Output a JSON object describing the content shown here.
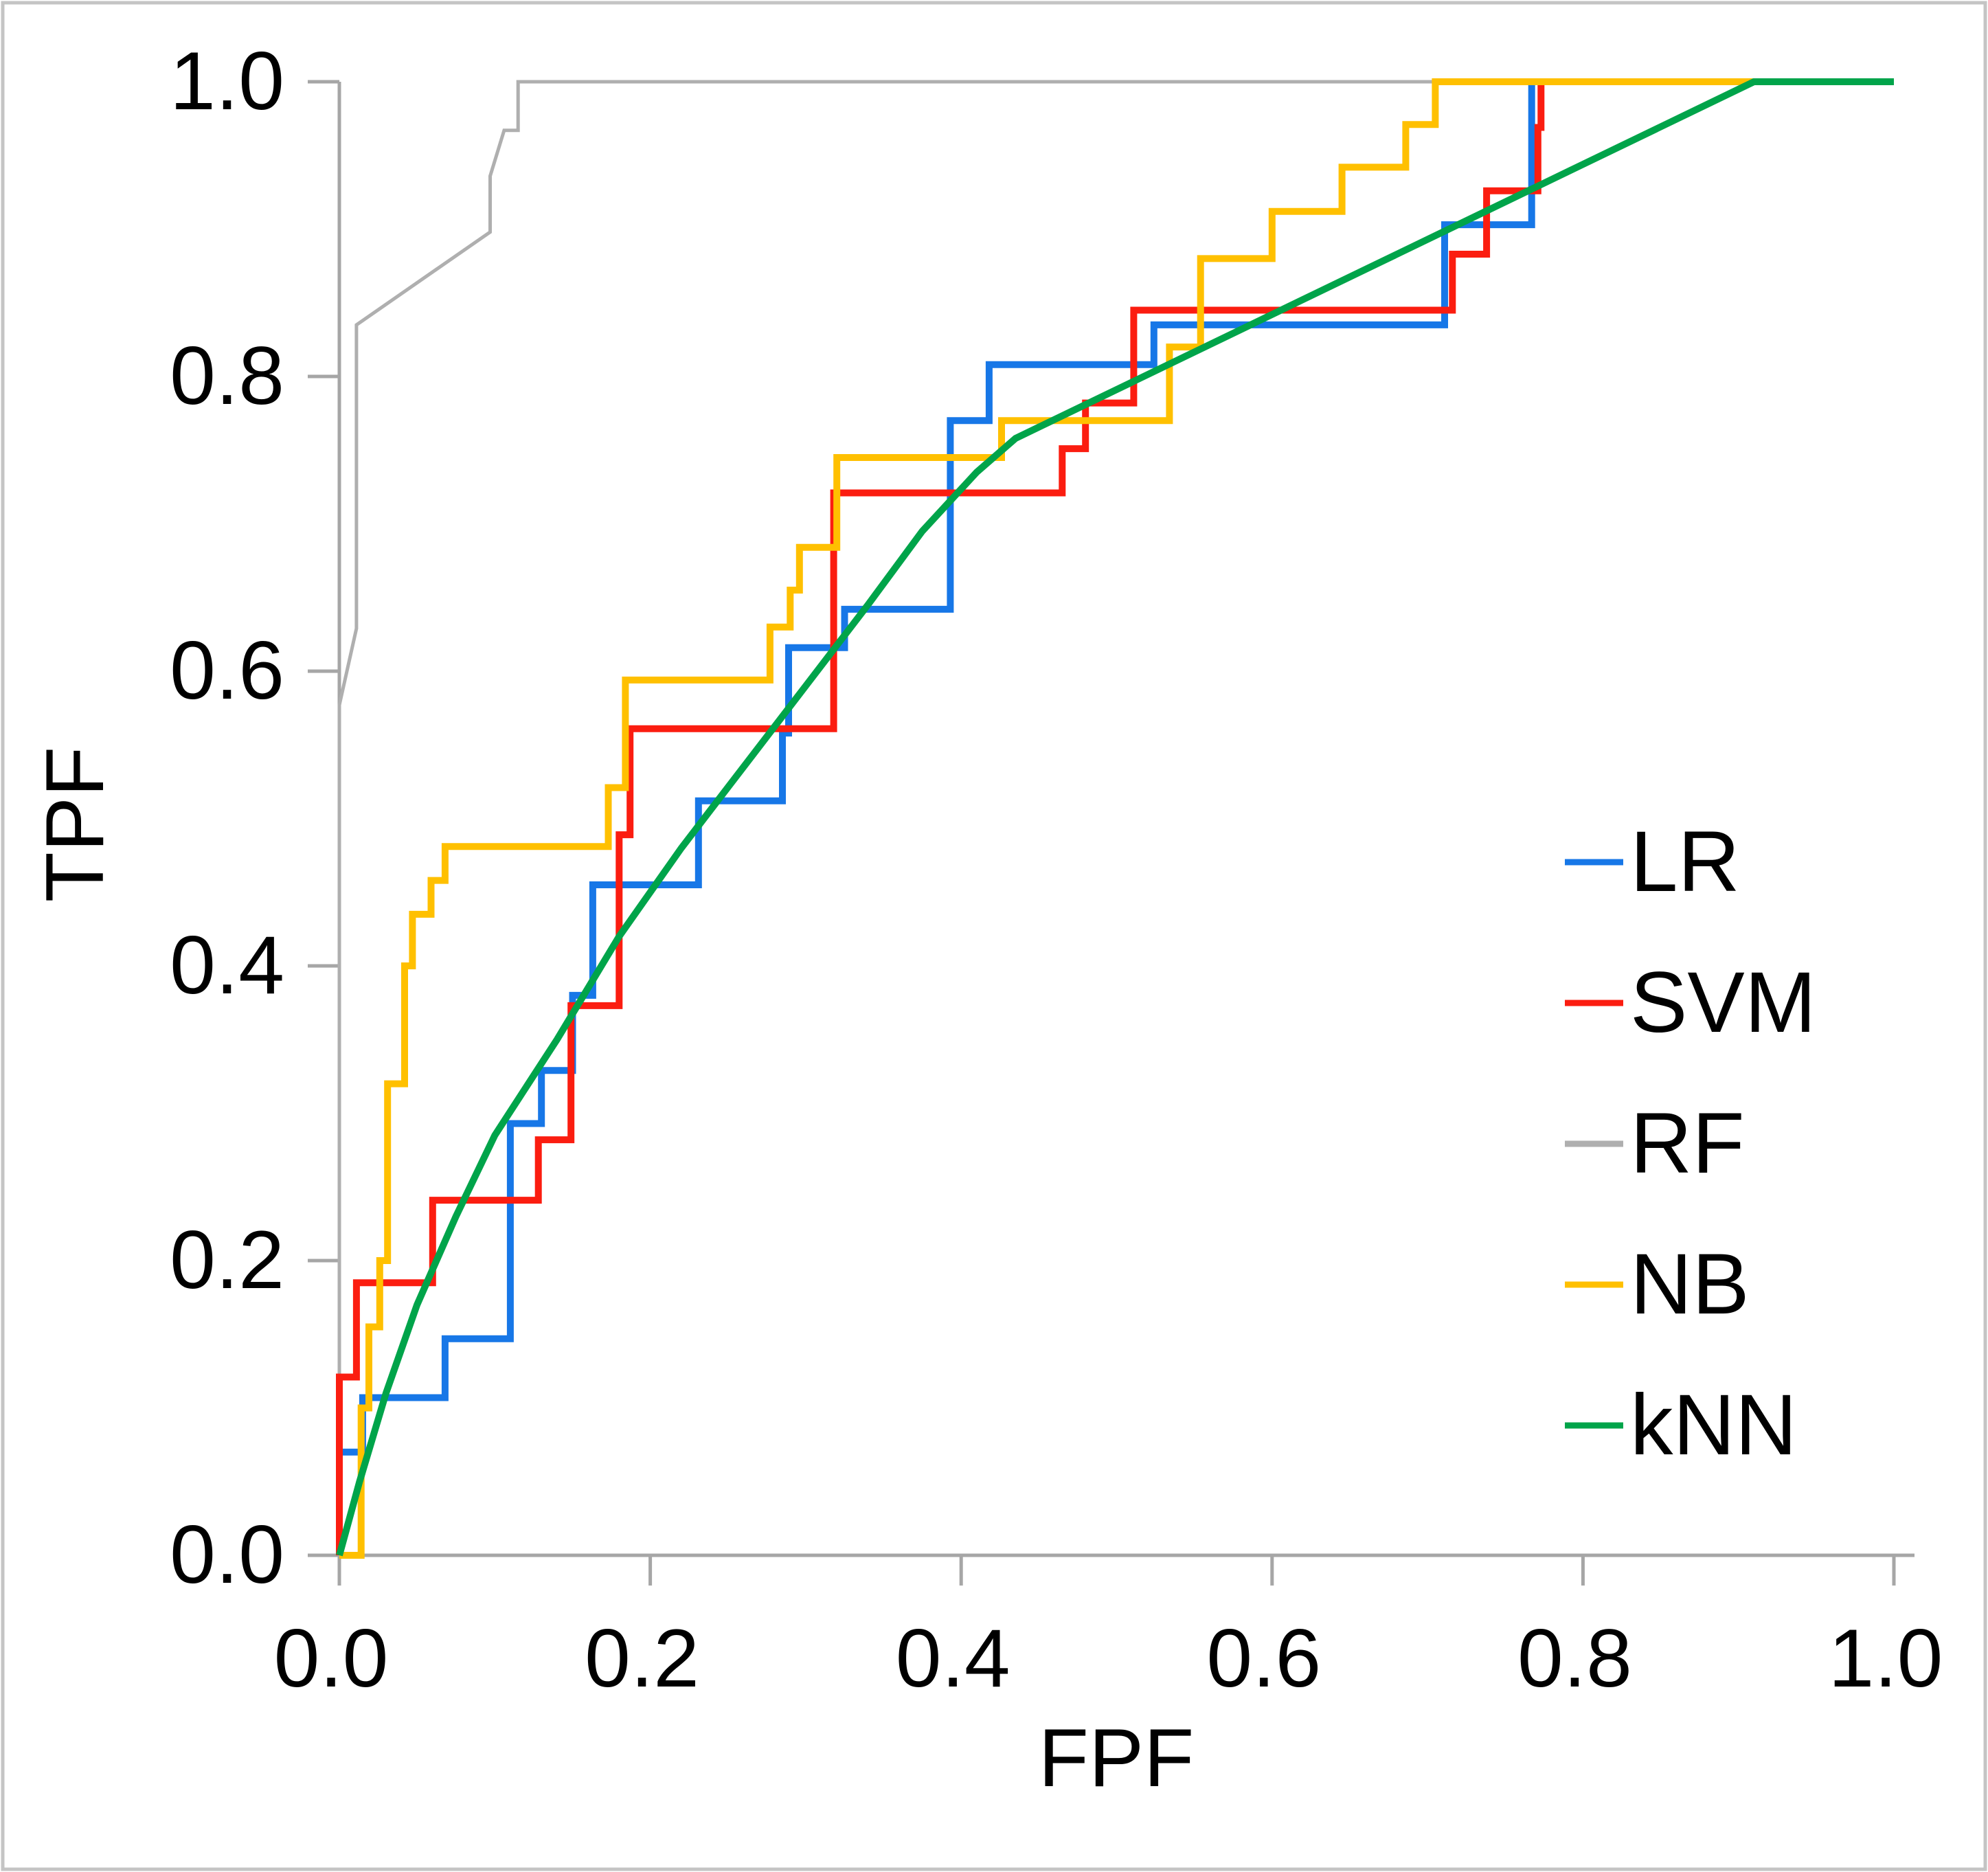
{
  "chart_data": {
    "type": "line",
    "subtype": "roc-step-curves",
    "title": "",
    "xlabel": "FPF",
    "ylabel": "TPF",
    "xlim": [
      0.0,
      1.0
    ],
    "ylim": [
      0.0,
      1.0
    ],
    "x_ticks": [
      "0.0",
      "0.2",
      "0.4",
      "0.6",
      "0.8",
      "1.0"
    ],
    "y_ticks": [
      "0.0",
      "0.2",
      "0.4",
      "0.6",
      "0.8",
      "1.0"
    ],
    "grid": "off",
    "legend_position": "right-middle",
    "series": [
      {
        "name": "LR",
        "color": "#1777E7",
        "stroke_width": 10,
        "points": [
          [
            0,
            0
          ],
          [
            0,
            0.07
          ],
          [
            0.015,
            0.07
          ],
          [
            0.015,
            0.107
          ],
          [
            0.068,
            0.107
          ],
          [
            0.068,
            0.147
          ],
          [
            0.11,
            0.147
          ],
          [
            0.11,
            0.293
          ],
          [
            0.13,
            0.293
          ],
          [
            0.13,
            0.329
          ],
          [
            0.15,
            0.329
          ],
          [
            0.15,
            0.38
          ],
          [
            0.163,
            0.38
          ],
          [
            0.163,
            0.455
          ],
          [
            0.231,
            0.455
          ],
          [
            0.231,
            0.512
          ],
          [
            0.285,
            0.512
          ],
          [
            0.285,
            0.558
          ],
          [
            0.289,
            0.558
          ],
          [
            0.289,
            0.616
          ],
          [
            0.325,
            0.616
          ],
          [
            0.325,
            0.642
          ],
          [
            0.393,
            0.642
          ],
          [
            0.393,
            0.77
          ],
          [
            0.418,
            0.77
          ],
          [
            0.418,
            0.808
          ],
          [
            0.524,
            0.808
          ],
          [
            0.524,
            0.835
          ],
          [
            0.711,
            0.835
          ],
          [
            0.711,
            0.903
          ],
          [
            0.767,
            0.903
          ],
          [
            0.767,
            1
          ],
          [
            1,
            1
          ]
        ]
      },
      {
        "name": "SVM",
        "color": "#FB1D10",
        "stroke_width": 10,
        "points": [
          [
            0,
            0
          ],
          [
            0,
            0.121
          ],
          [
            0.011,
            0.121
          ],
          [
            0.011,
            0.185
          ],
          [
            0.06,
            0.185
          ],
          [
            0.06,
            0.241
          ],
          [
            0.128,
            0.241
          ],
          [
            0.128,
            0.282
          ],
          [
            0.149,
            0.282
          ],
          [
            0.149,
            0.373
          ],
          [
            0.18,
            0.373
          ],
          [
            0.18,
            0.489
          ],
          [
            0.187,
            0.489
          ],
          [
            0.187,
            0.561
          ],
          [
            0.318,
            0.561
          ],
          [
            0.318,
            0.721
          ],
          [
            0.465,
            0.721
          ],
          [
            0.465,
            0.751
          ],
          [
            0.48,
            0.751
          ],
          [
            0.48,
            0.782
          ],
          [
            0.511,
            0.782
          ],
          [
            0.511,
            0.845
          ],
          [
            0.716,
            0.845
          ],
          [
            0.716,
            0.883
          ],
          [
            0.738,
            0.883
          ],
          [
            0.738,
            0.926
          ],
          [
            0.771,
            0.926
          ],
          [
            0.771,
            0.969
          ],
          [
            0.773,
            0.969
          ],
          [
            0.773,
            1
          ],
          [
            1,
            1
          ]
        ]
      },
      {
        "name": "RF",
        "color": "#AFAFAF",
        "stroke_width": 5,
        "points": [
          [
            0,
            0
          ],
          [
            0,
            0.577
          ],
          [
            0.011,
            0.629
          ],
          [
            0.011,
            0.835
          ],
          [
            0.097,
            0.898
          ],
          [
            0.097,
            0.936
          ],
          [
            0.106,
            0.967
          ],
          [
            0.115,
            0.967
          ],
          [
            0.115,
            1
          ],
          [
            1,
            1
          ]
        ]
      },
      {
        "name": "NB",
        "color": "#FFC000",
        "stroke_width": 10,
        "points": [
          [
            0,
            0
          ],
          [
            0.014,
            0
          ],
          [
            0.014,
            0.1
          ],
          [
            0.019,
            0.1
          ],
          [
            0.019,
            0.155
          ],
          [
            0.026,
            0.155
          ],
          [
            0.026,
            0.2
          ],
          [
            0.031,
            0.2
          ],
          [
            0.031,
            0.32
          ],
          [
            0.042,
            0.32
          ],
          [
            0.042,
            0.4
          ],
          [
            0.047,
            0.4
          ],
          [
            0.047,
            0.435
          ],
          [
            0.059,
            0.435
          ],
          [
            0.059,
            0.458
          ],
          [
            0.068,
            0.458
          ],
          [
            0.068,
            0.481
          ],
          [
            0.173,
            0.481
          ],
          [
            0.173,
            0.521
          ],
          [
            0.184,
            0.521
          ],
          [
            0.184,
            0.594
          ],
          [
            0.277,
            0.594
          ],
          [
            0.277,
            0.63
          ],
          [
            0.29,
            0.63
          ],
          [
            0.29,
            0.655
          ],
          [
            0.296,
            0.655
          ],
          [
            0.296,
            0.684
          ],
          [
            0.32,
            0.684
          ],
          [
            0.32,
            0.745
          ],
          [
            0.426,
            0.745
          ],
          [
            0.426,
            0.77
          ],
          [
            0.534,
            0.77
          ],
          [
            0.534,
            0.82
          ],
          [
            0.554,
            0.82
          ],
          [
            0.554,
            0.88
          ],
          [
            0.6,
            0.88
          ],
          [
            0.6,
            0.912
          ],
          [
            0.645,
            0.912
          ],
          [
            0.645,
            0.942
          ],
          [
            0.686,
            0.942
          ],
          [
            0.686,
            0.971
          ],
          [
            0.705,
            0.971
          ],
          [
            0.705,
            1
          ],
          [
            1,
            1
          ]
        ]
      },
      {
        "name": "kNN",
        "color": "#00A44A",
        "stroke_width": 10,
        "points": [
          [
            0,
            0
          ],
          [
            0.013,
            0.05
          ],
          [
            0.03,
            0.11
          ],
          [
            0.05,
            0.17
          ],
          [
            0.075,
            0.23
          ],
          [
            0.1,
            0.285
          ],
          [
            0.14,
            0.35
          ],
          [
            0.18,
            0.42
          ],
          [
            0.22,
            0.48
          ],
          [
            0.26,
            0.535
          ],
          [
            0.3,
            0.59
          ],
          [
            0.34,
            0.645
          ],
          [
            0.375,
            0.695
          ],
          [
            0.41,
            0.735
          ],
          [
            0.435,
            0.758
          ],
          [
            0.91,
            1
          ],
          [
            1,
            1
          ]
        ]
      }
    ],
    "legend": [
      {
        "label": "LR",
        "color": "#1777E7"
      },
      {
        "label": "SVM",
        "color": "#FB1D10"
      },
      {
        "label": "RF",
        "color": "#AFAFAF"
      },
      {
        "label": "NB",
        "color": "#FFC000"
      },
      {
        "label": "kNN",
        "color": "#00A44A"
      }
    ],
    "axis_color": "#A6A6A6",
    "border_color": "#C4C4C4"
  },
  "labels": {
    "xlabel": "FPF",
    "ylabel": "TPF"
  }
}
